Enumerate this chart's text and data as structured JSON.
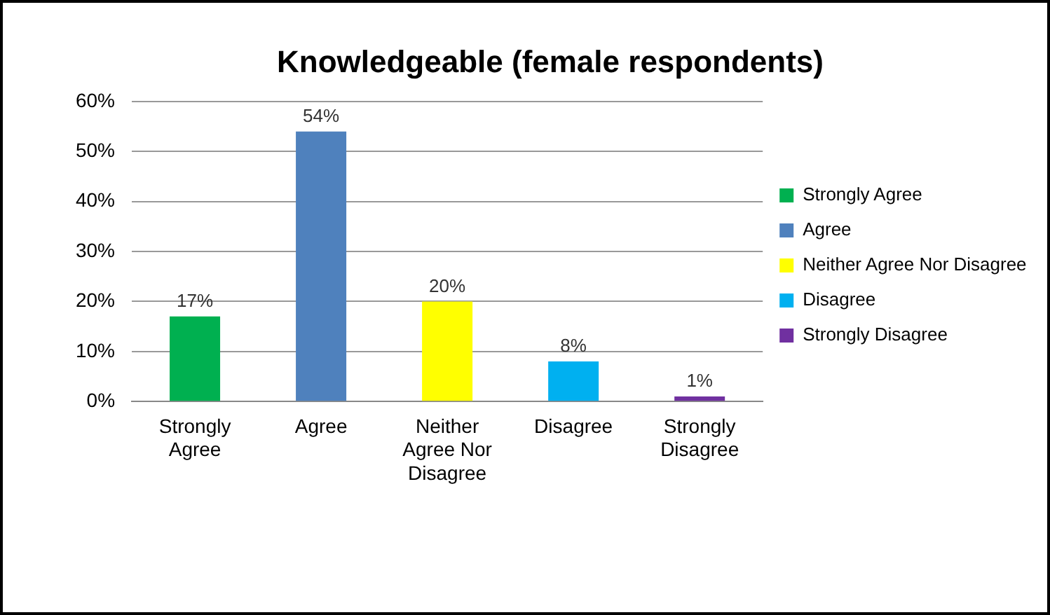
{
  "chart_data": {
    "type": "bar",
    "title": "Knowledgeable (female respondents)",
    "categories": [
      "Strongly Agree",
      "Agree",
      "Neither Agree Nor Disagree",
      "Disagree",
      "Strongly Disagree"
    ],
    "series": [
      {
        "name": "Strongly Agree",
        "color": "#00b050",
        "values": [
          17,
          null,
          null,
          null,
          null
        ],
        "value_labels": [
          "17%",
          null,
          null,
          null,
          null
        ]
      },
      {
        "name": "Agree",
        "color": "#4f81bd",
        "values": [
          null,
          54,
          null,
          null,
          null
        ],
        "value_labels": [
          null,
          "54%",
          null,
          null,
          null
        ]
      },
      {
        "name": "Neither Agree Nor Disagree",
        "color": "#ffff00",
        "values": [
          null,
          null,
          20,
          null,
          null
        ],
        "value_labels": [
          null,
          null,
          "20%",
          null,
          null
        ]
      },
      {
        "name": "Disagree",
        "color": "#00b0f0",
        "values": [
          null,
          null,
          null,
          8,
          null
        ],
        "value_labels": [
          null,
          null,
          null,
          "8%",
          null
        ]
      },
      {
        "name": "Strongly Disagree",
        "color": "#7030a0",
        "values": [
          null,
          null,
          null,
          null,
          1
        ],
        "value_labels": [
          null,
          null,
          null,
          null,
          "1%"
        ]
      }
    ],
    "ylim": [
      0,
      60
    ],
    "yticks": [
      {
        "value": 0,
        "label": "0%"
      },
      {
        "value": 10,
        "label": "10%"
      },
      {
        "value": 20,
        "label": "20%"
      },
      {
        "value": 30,
        "label": "30%"
      },
      {
        "value": 40,
        "label": "40%"
      },
      {
        "value": 50,
        "label": "50%"
      },
      {
        "value": 60,
        "label": "60%"
      }
    ],
    "grid": "y",
    "legend": "right"
  }
}
